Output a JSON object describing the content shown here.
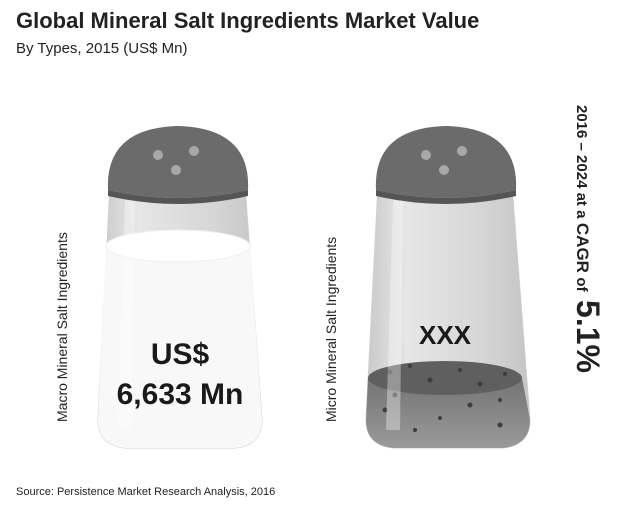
{
  "chart_data": {
    "type": "pictograph",
    "title": "Global Mineral Salt Ingredients Market Value",
    "subtitle": "By Types, 2015 (US$ Mn)",
    "categories": [
      "Macro Mineral Salt Ingredients",
      "Micro Mineral Salt Ingredients"
    ],
    "value_labels": {
      "macro_line1": "US$",
      "macro_line2": "6,633 Mn",
      "micro": "XXX"
    },
    "values": [
      6633,
      null
    ],
    "unit": "US$ Mn",
    "fill_levels": [
      0.78,
      0.22
    ],
    "cagr": {
      "lead": "2016 – 2024 at a",
      "label": "CAGR",
      "of": "of",
      "value": "5.1%"
    },
    "source": "Source: Persistence Market Research Analysis, 2016"
  },
  "colors": {
    "cap": "#6e6e6e",
    "cap_dark": "#555555",
    "glass": "#dcdcdc",
    "salt_white": "#fbfbfb",
    "salt_grey": "#7a7a7a"
  }
}
